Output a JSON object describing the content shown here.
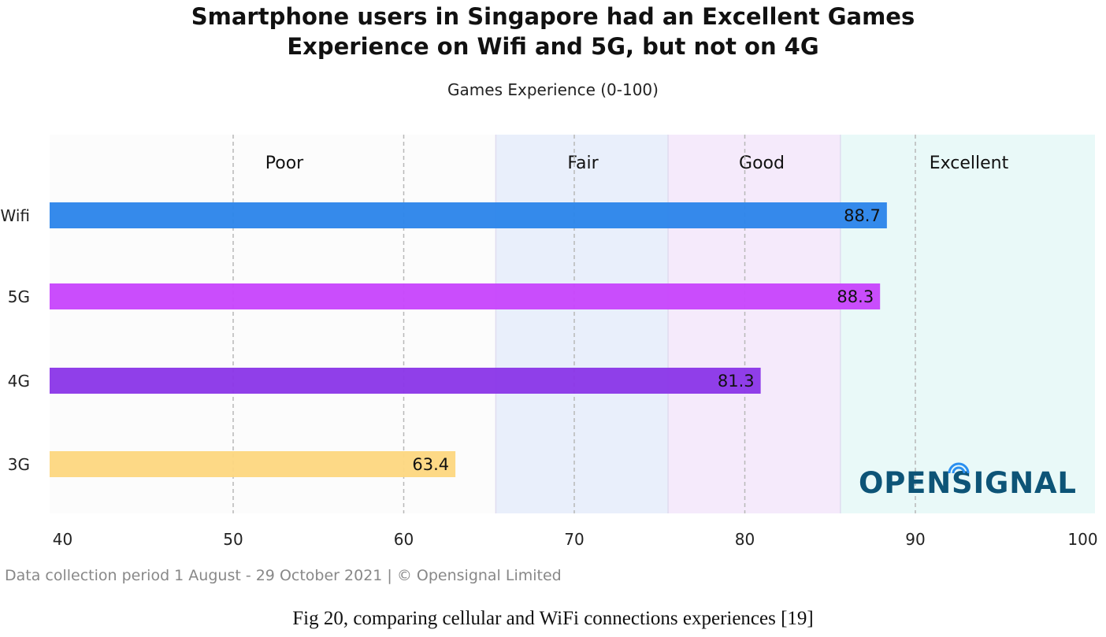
{
  "chart_data": {
    "type": "bar",
    "orientation": "horizontal",
    "title_lines": [
      "Smartphone users in Singapore had an Excellent Games",
      "Experience on Wifi and 5G, but not on 4G"
    ],
    "subtitle": "Games Experience (0-100)",
    "categories": [
      "Wifi",
      "5G",
      "4G",
      "3G"
    ],
    "values": [
      88.7,
      88.3,
      81.3,
      63.4
    ],
    "value_labels": [
      "88.7",
      "88.3",
      "81.3",
      "63.4"
    ],
    "colors": [
      "#2a84ea",
      "#c743fc",
      "#8a35e8",
      "#fdd77f"
    ],
    "xlim": [
      40,
      100
    ],
    "xticks": [
      40,
      50,
      60,
      70,
      80,
      90,
      100
    ],
    "xtick_labels": [
      "40",
      "50",
      "60",
      "70",
      "80",
      "90",
      "100"
    ],
    "bands": [
      {
        "label": "Poor",
        "from": 40,
        "to": 65.4,
        "color": "#fcfcfc"
      },
      {
        "label": "Fair",
        "from": 65.4,
        "to": 75.5,
        "color": "#e9effb"
      },
      {
        "label": "Good",
        "from": 75.5,
        "to": 85.6,
        "color": "#f5eafb"
      },
      {
        "label": "Excellent",
        "from": 85.6,
        "to": 100,
        "color": "#e9f9f8"
      }
    ],
    "grid": "dashed vertical"
  },
  "logo": {
    "text": "OPENSIGNAL",
    "color": "#0d5477",
    "accent": "#2a8ff0"
  },
  "footer": "Data collection period 1 August - 29 October 2021 | © Opensignal Limited",
  "caption": "Fig 20, comparing cellular and WiFi connections experiences  [19]"
}
